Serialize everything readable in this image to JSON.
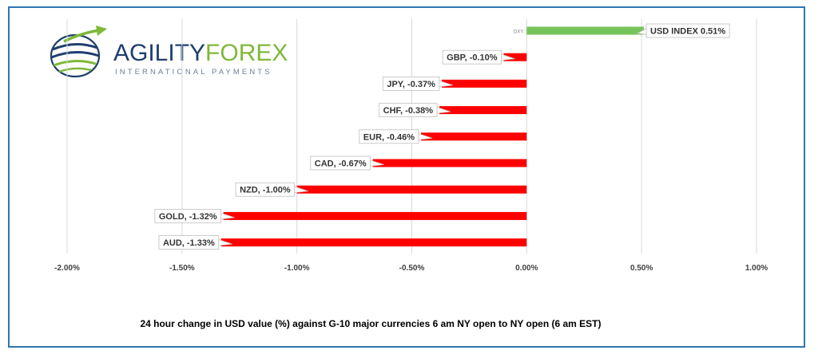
{
  "logo": {
    "name_part1": "AGILITY",
    "name_part2": "FOREX",
    "subtitle": "INTERNATIONAL PAYMENTS",
    "brand_blue": "#1f3f6e",
    "brand_green": "#7fb83a"
  },
  "chart_data": {
    "type": "bar",
    "orientation": "horizontal",
    "title": "24 hour change in  USD value (%)  against  G-10 major currencies 6 am NY open to NY open  (6 am EST)",
    "xlim": [
      -0.02,
      0.01
    ],
    "tick_values": [
      -0.02,
      -0.015,
      -0.01,
      -0.005,
      0.0,
      0.005,
      0.01
    ],
    "tick_labels": [
      "-2.00%",
      "-1.50%",
      "-1.00%",
      "-0.50%",
      "0.00%",
      "0.50%",
      "1.00%"
    ],
    "grid": true,
    "categories": [
      "DXY",
      "GBP",
      "JPY",
      "CHF",
      "EUR",
      "CAD",
      "NZD",
      "GOLD",
      "AUD"
    ],
    "values": [
      0.0051,
      -0.001,
      -0.0037,
      -0.0038,
      -0.0046,
      -0.0067,
      -0.01,
      -0.0132,
      -0.0133
    ],
    "data_labels": [
      "USD INDEX 0.51%",
      "GBP, -0.10%",
      "JPY, -0.37%",
      "CHF, -0.38%",
      "EUR, -0.46%",
      "CAD, -0.67%",
      "NZD, -1.00%",
      "GOLD, -1.32%",
      "AUD, -1.33%"
    ],
    "category_axis_label": "DXY",
    "colors": {
      "positive": "#76c35a",
      "negative": "#ff0000",
      "grid": "#d9d9d9",
      "border": "#2e75b6"
    }
  }
}
